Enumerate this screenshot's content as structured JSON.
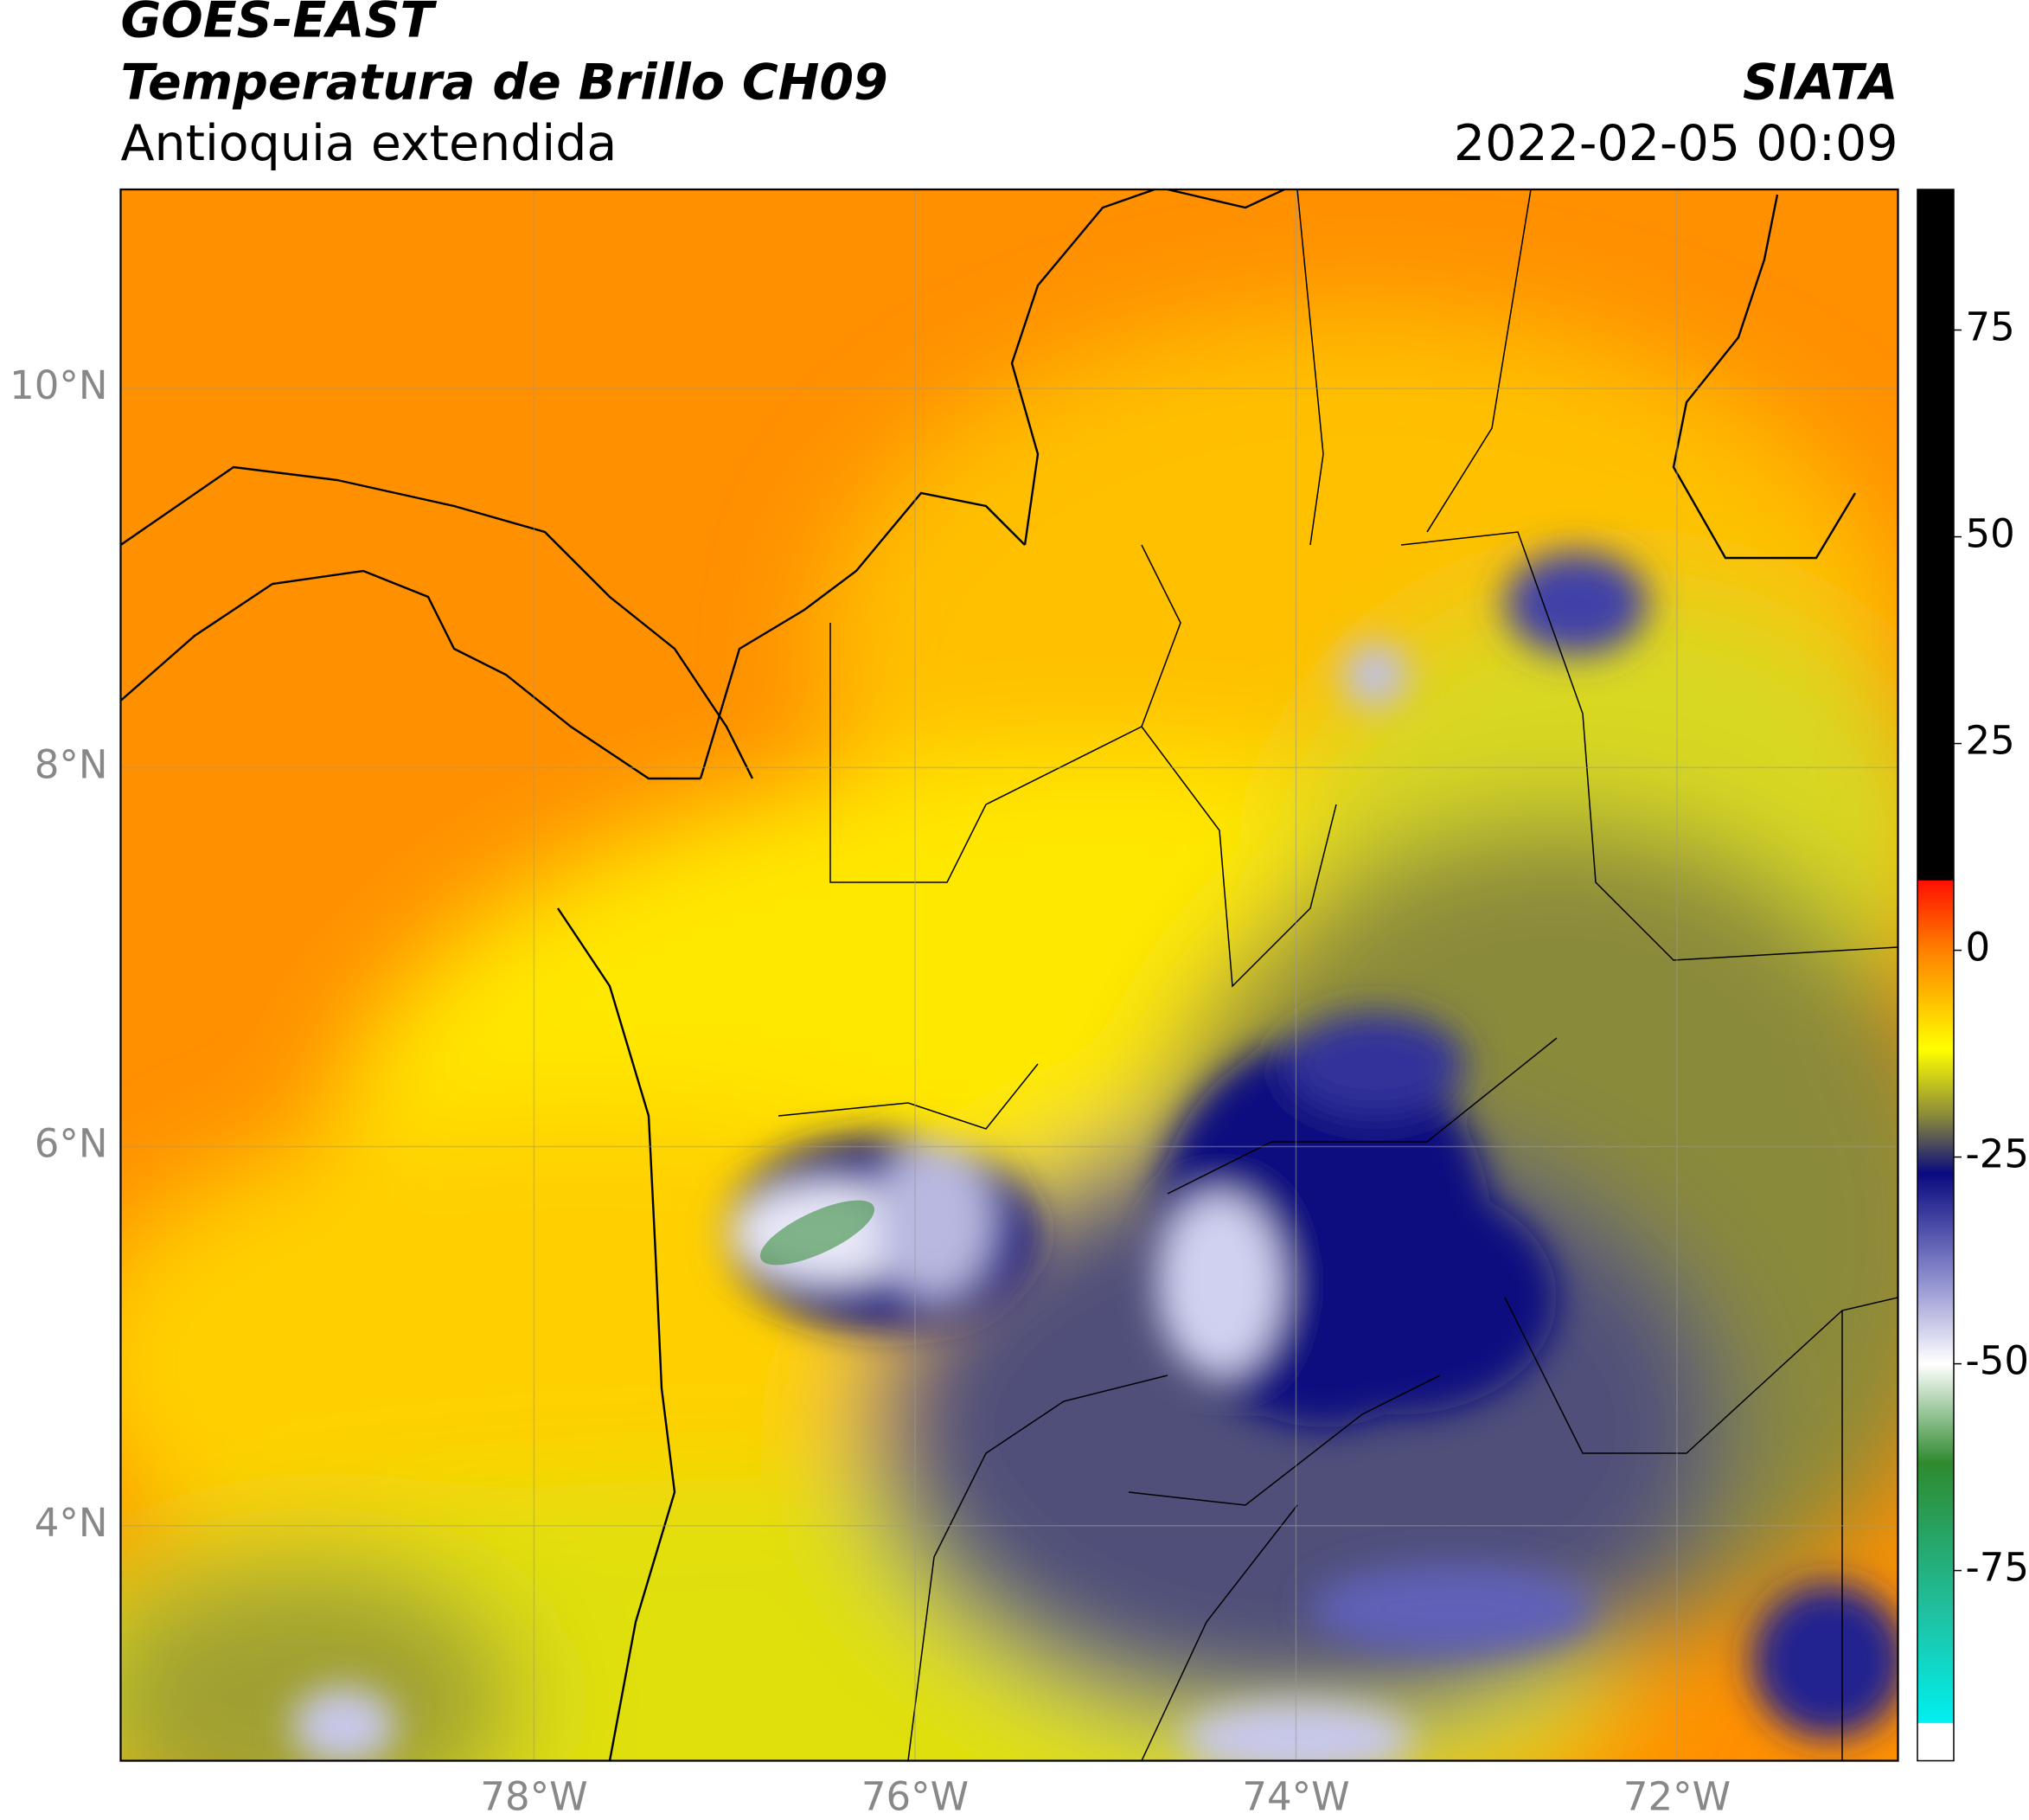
{
  "header": {
    "satellite": "GOES-EAST",
    "product": "Temperatura de Brillo CH09",
    "region": "Antioquia extendida",
    "source": "SIATA",
    "datetime": "2022-02-05 00:09"
  },
  "map": {
    "xlim": [
      -80.17,
      -70.84
    ],
    "ylim": [
      2.76,
      11.05
    ],
    "xticks": [
      {
        "value": -78,
        "label": "78°W"
      },
      {
        "value": -76,
        "label": "76°W"
      },
      {
        "value": -74,
        "label": "74°W"
      },
      {
        "value": -72,
        "label": "72°W"
      }
    ],
    "yticks": [
      {
        "value": 10,
        "label": "10°N"
      },
      {
        "value": 8,
        "label": "8°N"
      },
      {
        "value": 6,
        "label": "6°N"
      },
      {
        "value": 4,
        "label": "4°N"
      }
    ],
    "grid": true
  },
  "colorbar": {
    "lim": [
      -98,
      92
    ],
    "ticks": [
      75,
      50,
      25,
      0,
      -25,
      -50,
      -75
    ],
    "stops": [
      {
        "value": 92,
        "color": "#000000"
      },
      {
        "value": 8.5,
        "color": "#000000"
      },
      {
        "value": 8.4,
        "color": "#ff1000"
      },
      {
        "value": 0,
        "color": "#ff8000"
      },
      {
        "value": -12,
        "color": "#ffff00"
      },
      {
        "value": -20,
        "color": "#8a8a3a"
      },
      {
        "value": -27,
        "color": "#0a0a80"
      },
      {
        "value": -40,
        "color": "#9090d0"
      },
      {
        "value": -50,
        "color": "#ffffff"
      },
      {
        "value": -62,
        "color": "#2e8a2e"
      },
      {
        "value": -80,
        "color": "#20c0a0"
      },
      {
        "value": -93.4,
        "color": "#00f0f0"
      },
      {
        "value": -93.5,
        "color": "#ffffff"
      },
      {
        "value": -98,
        "color": "#ffffff"
      }
    ]
  }
}
